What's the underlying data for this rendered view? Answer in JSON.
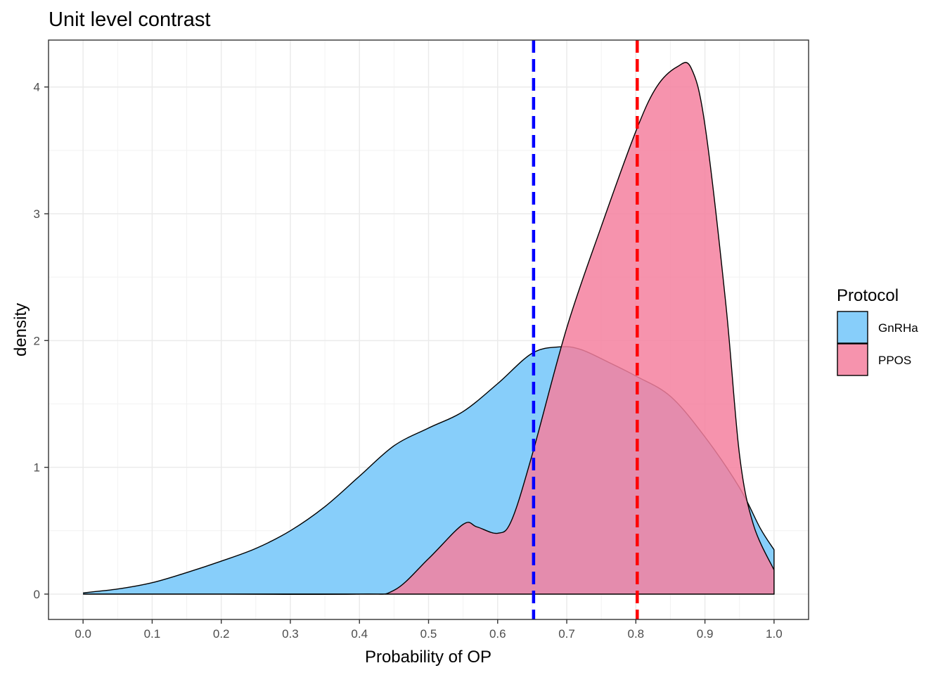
{
  "chart_data": {
    "type": "area",
    "title": "Unit level contrast",
    "xlabel": "Probability of OP",
    "ylabel": "density",
    "xlim": [
      -0.05,
      1.05
    ],
    "ylim": [
      -0.2,
      4.37
    ],
    "x_ticks": [
      "0.0",
      "0.1",
      "0.2",
      "0.3",
      "0.4",
      "0.5",
      "0.6",
      "0.7",
      "0.8",
      "0.9",
      "1.0"
    ],
    "y_ticks": [
      "0",
      "1",
      "2",
      "3",
      "4"
    ],
    "grid": true,
    "legend": {
      "title": "Protocol",
      "position": "right",
      "entries": [
        "GnRHa",
        "PPOS"
      ]
    },
    "series": [
      {
        "name": "GnRHa",
        "color": "#87CEFA",
        "x": [
          0.0,
          0.05,
          0.1,
          0.15,
          0.2,
          0.25,
          0.3,
          0.35,
          0.4,
          0.45,
          0.5,
          0.55,
          0.6,
          0.65,
          0.69,
          0.72,
          0.76,
          0.8,
          0.85,
          0.9,
          0.95,
          0.98,
          1.0
        ],
        "y": [
          0.01,
          0.04,
          0.09,
          0.17,
          0.26,
          0.36,
          0.5,
          0.69,
          0.93,
          1.17,
          1.31,
          1.44,
          1.66,
          1.9,
          1.95,
          1.93,
          1.83,
          1.72,
          1.56,
          1.24,
          0.84,
          0.52,
          0.35
        ]
      },
      {
        "name": "PPOS",
        "color": "#F4809F",
        "x": [
          0.0,
          0.2,
          0.4,
          0.45,
          0.5,
          0.55,
          0.57,
          0.6,
          0.62,
          0.65,
          0.7,
          0.75,
          0.8,
          0.83,
          0.86,
          0.88,
          0.9,
          0.93,
          0.95,
          0.97,
          1.0
        ],
        "y": [
          0.0,
          0.0,
          0.0,
          0.03,
          0.28,
          0.55,
          0.53,
          0.48,
          0.58,
          1.1,
          2.1,
          2.9,
          3.65,
          4.0,
          4.16,
          4.15,
          3.7,
          2.3,
          1.1,
          0.55,
          0.19
        ]
      }
    ],
    "vlines": [
      {
        "x": 0.652,
        "color": "#0000FF",
        "style": "dashed"
      },
      {
        "x": 0.802,
        "color": "#FF0000",
        "style": "dashed"
      }
    ],
    "overlap_color": "#BB6F9E"
  }
}
